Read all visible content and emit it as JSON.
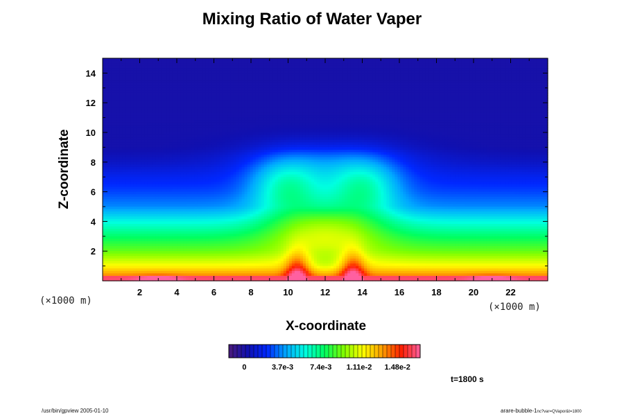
{
  "chart_data": {
    "type": "heatmap",
    "title": "Mixing Ratio of Water Vaper",
    "xlabel": "X-coordinate",
    "ylabel": "Z-coordinate",
    "x_unit": "(×1000 m)",
    "y_unit": "(×1000 m)",
    "xlim": [
      0,
      24
    ],
    "ylim": [
      0,
      15
    ],
    "x_ticks": [
      "2",
      "4",
      "6",
      "8",
      "10",
      "12",
      "14",
      "16",
      "18",
      "20",
      "22"
    ],
    "y_ticks": [
      "2",
      "4",
      "6",
      "8",
      "10",
      "12",
      "14"
    ],
    "colorbar": {
      "labels": [
        "0",
        "3.7e-3",
        "7.4e-3",
        "1.11e-2",
        "1.48e-2"
      ],
      "label_values": [
        0,
        0.0037,
        0.0074,
        0.0111,
        0.0148
      ],
      "range": [
        -0.0015,
        0.017
      ],
      "colormap": [
        "#4a1a7a",
        "#1010b0",
        "#0028ff",
        "#00a8ff",
        "#00ffe0",
        "#00ff60",
        "#80ff00",
        "#ffff00",
        "#ffa000",
        "#ff2000",
        "#ff60a0"
      ]
    },
    "colorscale_range": [
      0,
      0.0165
    ],
    "field_description_values": {
      "surface_value": 0.0165,
      "background_profile_heights": [
        0,
        1,
        2,
        3,
        4,
        5,
        6,
        7,
        8,
        9,
        15
      ],
      "background_profile_values": [
        0.0148,
        0.0115,
        0.0092,
        0.0076,
        0.0058,
        0.0036,
        0.0026,
        0.0018,
        0.0008,
        0.0002,
        0.0001
      ]
    },
    "time_label": "t=1800 s",
    "grid": false
  },
  "footer": {
    "left": "/usr/bin/gpview 2005-01-10",
    "right_main": "arare-bubble-1",
    "right_sub": "nc?var=QVapor&t=1800"
  }
}
